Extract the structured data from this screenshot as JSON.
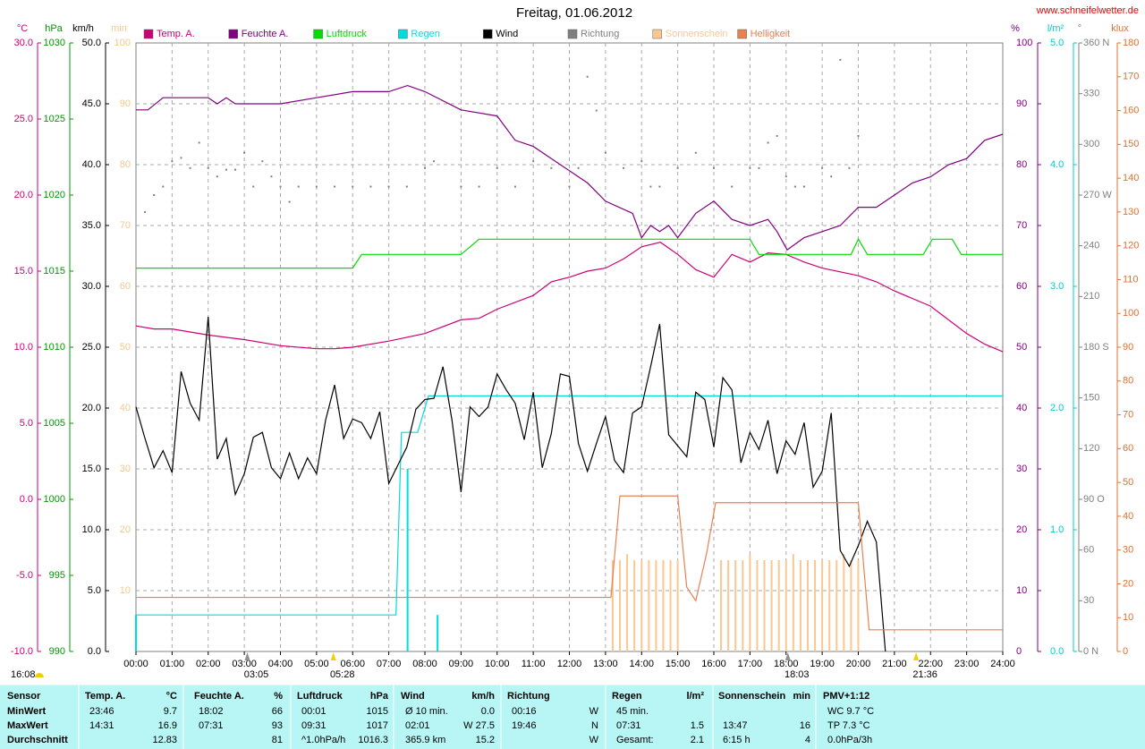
{
  "chart_data": {
    "type": "line",
    "title": "Freitag, 01.06.2012",
    "source": "www.schneifelwetter.de",
    "xlim": [
      0,
      24
    ],
    "xticks": [
      {
        "value": 0,
        "label": "00:00"
      },
      {
        "value": 1,
        "label": "01:00"
      },
      {
        "value": 2,
        "label": "02:00"
      },
      {
        "value": 3,
        "label": "03:00"
      },
      {
        "value": 4,
        "label": "04:00"
      },
      {
        "value": 5,
        "label": "05:00"
      },
      {
        "value": 6,
        "label": "06:00"
      },
      {
        "value": 7,
        "label": "07:00"
      },
      {
        "value": 8,
        "label": "08:00"
      },
      {
        "value": 9,
        "label": "09:00"
      },
      {
        "value": 10,
        "label": "10:00"
      },
      {
        "value": 11,
        "label": "11:00"
      },
      {
        "value": 12,
        "label": "12:00"
      },
      {
        "value": 13,
        "label": "13:00"
      },
      {
        "value": 14,
        "label": "14:00"
      },
      {
        "value": 15,
        "label": "15:00"
      },
      {
        "value": 16,
        "label": "16:00"
      },
      {
        "value": 17,
        "label": "17:00"
      },
      {
        "value": 18,
        "label": "18:00"
      },
      {
        "value": 19,
        "label": "19:00"
      },
      {
        "value": 20,
        "label": "20:00"
      },
      {
        "value": 21,
        "label": "21:00"
      },
      {
        "value": 22,
        "label": "22:00"
      },
      {
        "value": 23,
        "label": "23:00"
      },
      {
        "value": 24,
        "label": "24:00"
      }
    ],
    "xgrid": true,
    "axes": [
      {
        "label": "°C",
        "color": "#cc0077",
        "lim": [
          -10,
          30
        ],
        "ticks": [
          {
            "value": -10,
            "label": "-10.0"
          },
          {
            "value": -5,
            "label": "-5.0"
          },
          {
            "value": 0,
            "label": "0.0"
          },
          {
            "value": 5,
            "label": "5.0"
          },
          {
            "value": 10,
            "label": "10.0"
          },
          {
            "value": 15,
            "label": "15.0"
          },
          {
            "value": 20,
            "label": "20.0"
          },
          {
            "value": 25,
            "label": "25.0"
          },
          {
            "value": 30,
            "label": "30.0"
          }
        ]
      },
      {
        "label": "hPa",
        "color": "#009900",
        "lim": [
          990,
          1030
        ],
        "ticks": [
          990,
          995,
          1000,
          1005,
          1010,
          1015,
          1020,
          1025,
          1030
        ]
      },
      {
        "label": "km/h",
        "color": "#000000",
        "lim": [
          0,
          50
        ],
        "grid": true,
        "ticks": [
          {
            "value": 0,
            "label": "0.0"
          },
          {
            "value": 5,
            "label": "5.0"
          },
          {
            "value": 10,
            "label": "10.0"
          },
          {
            "value": 15,
            "label": "15.0"
          },
          {
            "value": 20,
            "label": "20.0"
          },
          {
            "value": 25,
            "label": "25.0"
          },
          {
            "value": 30,
            "label": "30.0"
          },
          {
            "value": 35,
            "label": "35.0"
          },
          {
            "value": 40,
            "label": "40.0"
          },
          {
            "value": 45,
            "label": "45.0"
          },
          {
            "value": 50,
            "label": "50.0"
          }
        ]
      },
      {
        "label": "min",
        "color": "#f0c890",
        "lim": [
          0,
          100
        ],
        "ticks": [
          10,
          20,
          30,
          40,
          50,
          60,
          70,
          80,
          90,
          100
        ]
      },
      {
        "label": "%",
        "color": "#800080",
        "lim": [
          0,
          100
        ],
        "ticks": [
          0,
          10,
          20,
          30,
          40,
          50,
          60,
          70,
          80,
          90,
          100
        ]
      },
      {
        "label": "l/m²",
        "color": "#00cccc",
        "lim": [
          0,
          5
        ],
        "ticks": [
          {
            "value": 0,
            "label": "0.0"
          },
          {
            "value": 1,
            "label": "1.0"
          },
          {
            "value": 2,
            "label": "2.0"
          },
          {
            "value": 3,
            "label": "3.0"
          },
          {
            "value": 4,
            "label": "4.0"
          },
          {
            "value": 5,
            "label": "5.0"
          }
        ]
      },
      {
        "label": "°",
        "color": "#808080",
        "lim": [
          0,
          360
        ],
        "ticks": [
          {
            "value": 0,
            "label": "0 N"
          },
          30,
          60,
          {
            "value": 90,
            "label": "90 O"
          },
          120,
          150,
          {
            "value": 180,
            "label": "180 S"
          },
          210,
          240,
          {
            "value": 270,
            "label": "270 W"
          },
          300,
          330,
          {
            "value": 360,
            "label": "360 N"
          }
        ]
      },
      {
        "label": "klux",
        "color": "#e07030",
        "lim": [
          0,
          180
        ],
        "ticks": [
          0,
          10,
          20,
          30,
          40,
          50,
          60,
          70,
          80,
          90,
          100,
          110,
          120,
          130,
          140,
          150,
          160,
          170,
          180
        ]
      }
    ],
    "series": [
      {
        "name": "Temp. A.",
        "color": "#cc0077",
        "axis": "°C",
        "mark": "line",
        "x": [
          0,
          0.5,
          1,
          2,
          3,
          4,
          5,
          5.5,
          6,
          7,
          8,
          9,
          9.5,
          10,
          11,
          11.5,
          12,
          12.5,
          13,
          13.5,
          14,
          14.52,
          15,
          15.5,
          16,
          16.5,
          17,
          17.5,
          18,
          18.5,
          19,
          20,
          20.5,
          21,
          22,
          23,
          23.5,
          24
        ],
        "values": [
          11.4,
          11.2,
          11.2,
          10.8,
          10.5,
          10.1,
          9.9,
          9.9,
          10.0,
          10.4,
          10.9,
          11.8,
          11.9,
          12.5,
          13.4,
          14.3,
          14.6,
          15.0,
          15.2,
          15.8,
          16.6,
          16.9,
          16.1,
          15.1,
          14.6,
          16.1,
          15.6,
          16.2,
          16.1,
          15.6,
          15.2,
          14.7,
          14.3,
          13.7,
          12.7,
          10.9,
          10.2,
          9.7
        ]
      },
      {
        "name": "Feuchte A.",
        "color": "#800080",
        "axis": "%",
        "mark": "line",
        "x": [
          0,
          0.33,
          0.75,
          1,
          2,
          2.25,
          2.5,
          2.75,
          4,
          5,
          6,
          7,
          7.52,
          8,
          9,
          10,
          10.5,
          11,
          11.5,
          12,
          12.5,
          13,
          13.75,
          14,
          14.25,
          14.5,
          14.75,
          15,
          15.5,
          16,
          16.5,
          17,
          17.5,
          17.75,
          18.03,
          18.5,
          19,
          19.5,
          20,
          20.5,
          21,
          21.5,
          22,
          22.5,
          23,
          23.5,
          24
        ],
        "values": [
          89,
          89,
          91,
          91,
          91,
          90,
          91,
          90,
          90,
          91,
          92,
          92,
          93,
          92,
          89,
          88,
          84,
          83,
          81,
          79,
          77,
          74,
          72,
          68,
          70,
          69,
          70,
          68,
          72,
          74,
          71,
          70,
          71,
          69,
          66,
          68,
          69,
          70,
          73,
          73,
          75,
          77,
          78,
          80,
          81,
          84,
          85
        ]
      },
      {
        "name": "Luftdruck",
        "color": "#00dd00",
        "axis": "hPa",
        "mark": "line",
        "x": [
          0,
          6,
          6.25,
          9,
          9.5,
          17,
          17.25,
          19.8,
          20,
          20.25,
          21.8,
          22.05,
          22.6,
          22.85,
          24
        ],
        "values": [
          1015.2,
          1015.2,
          1016.1,
          1016.1,
          1017.1,
          1017.1,
          1016.1,
          1016.1,
          1017.1,
          1016.1,
          1016.1,
          1017.1,
          1017.1,
          1016.1,
          1016.1
        ]
      },
      {
        "name": "Regen",
        "color": "#00dddd",
        "axis": "l/m²",
        "mark": "line",
        "x": [
          0,
          0,
          7.2,
          7.35,
          7.8,
          8.1,
          24
        ],
        "values": [
          0,
          0.3,
          0.3,
          1.8,
          1.8,
          2.1,
          2.1
        ]
      },
      {
        "name": "Wind",
        "color": "#000000",
        "axis": "km/h",
        "mark": "line",
        "x": [
          0,
          0.25,
          0.5,
          0.75,
          1,
          1.25,
          1.5,
          1.75,
          2,
          2.25,
          2.5,
          2.75,
          3,
          3.25,
          3.5,
          3.75,
          4,
          4.25,
          4.5,
          4.75,
          5,
          5.25,
          5.5,
          5.75,
          6,
          6.25,
          6.5,
          6.75,
          7,
          7.25,
          7.5,
          7.75,
          8,
          8.25,
          8.5,
          8.75,
          9,
          9.25,
          9.5,
          9.75,
          10,
          10.25,
          10.5,
          10.75,
          11,
          11.25,
          11.5,
          11.75,
          12,
          12.25,
          12.5,
          12.75,
          13,
          13.25,
          13.5,
          13.75,
          14,
          14.25,
          14.5,
          14.75,
          15,
          15.25,
          15.5,
          15.75,
          16,
          16.25,
          16.5,
          16.75,
          17,
          17.25,
          17.5,
          17.75,
          18,
          18.25,
          18.5,
          18.75,
          19,
          19.25,
          19.5,
          19.75,
          20,
          20.25,
          20.5,
          20.75
        ],
        "values": [
          20.1,
          17.5,
          15.1,
          16.5,
          14.7,
          23.0,
          20.4,
          19.0,
          27.5,
          15.8,
          17.5,
          12.9,
          14.6,
          17.6,
          18.0,
          15.1,
          14.2,
          16.3,
          14.2,
          15.9,
          14.6,
          19.0,
          21.9,
          17.5,
          19.1,
          18.8,
          17.5,
          19.7,
          13.8,
          15.3,
          16.8,
          19.9,
          20.7,
          20.8,
          23.4,
          19.0,
          13.1,
          20.1,
          19.3,
          20.1,
          22.8,
          21.5,
          20.4,
          17.4,
          21.3,
          15.1,
          17.9,
          22.8,
          22.6,
          17.1,
          14.8,
          17.1,
          19.3,
          15.7,
          14.7,
          19.6,
          20.1,
          23.4,
          26.9,
          17.8,
          16.9,
          16.0,
          21.3,
          20.7,
          16.8,
          22.5,
          21.5,
          15.5,
          18.0,
          16.6,
          19.0,
          14.6,
          17.3,
          16.2,
          18.8,
          13.5,
          14.8,
          19.6,
          8.3,
          7.0,
          8.7,
          10.7,
          9.0,
          0.0
        ]
      },
      {
        "name": "Richtung",
        "color": "#808080",
        "axis": "°",
        "mark": "dots",
        "x": [
          0.25,
          0.5,
          0.75,
          1,
          1.25,
          1.5,
          1.75,
          2,
          2.25,
          2.5,
          2.75,
          3,
          3.25,
          3.5,
          3.75,
          4,
          4.25,
          4.5,
          5,
          5.5,
          6,
          6.5,
          7,
          7.5,
          8,
          8.25,
          9,
          9.5,
          10,
          10.5,
          11,
          11.5,
          12,
          12.25,
          12.5,
          12.75,
          13,
          13.5,
          14,
          14.25,
          14.5,
          15,
          15.5,
          16,
          16.5,
          17,
          17.25,
          17.5,
          17.75,
          18,
          18.25,
          18.5,
          19,
          19.25,
          19.5,
          19.75,
          20
        ],
        "values": [
          260,
          270,
          275,
          290,
          292,
          286,
          301,
          286,
          281,
          285,
          285,
          295,
          275,
          290,
          281,
          275,
          266,
          275,
          275,
          275,
          275,
          275,
          275,
          275,
          286,
          290,
          275,
          275,
          286,
          275,
          290,
          286,
          275,
          286,
          340,
          320,
          295,
          286,
          290,
          275,
          275,
          286,
          295,
          286,
          275,
          286,
          286,
          301,
          305,
          281,
          275,
          275,
          286,
          281,
          350,
          286,
          305
        ]
      },
      {
        "name": "Sonnenschein",
        "color": "#f8c890",
        "axis": "min",
        "mark": "bars",
        "x": [
          13.2,
          13.4,
          13.6,
          13.8,
          14.0,
          14.2,
          14.4,
          14.6,
          14.8,
          15.0,
          16.2,
          16.4,
          16.6,
          16.8,
          17.0,
          17.2,
          17.4,
          17.6,
          17.8,
          18.0,
          18.2,
          18.4,
          18.6,
          18.8,
          19.0,
          19.2,
          19.4,
          19.6,
          19.8,
          20.0
        ],
        "values": [
          15,
          15,
          16,
          15,
          15,
          15,
          15,
          15,
          15,
          15,
          15,
          15,
          15,
          15,
          16,
          15,
          15,
          15,
          15,
          15,
          16,
          15,
          15,
          15,
          15,
          15,
          15,
          16,
          15,
          15
        ]
      },
      {
        "name": "Helligkeit",
        "color": "#e88050",
        "axis": "klux",
        "mark": "line",
        "x": [
          0,
          13.15,
          13.4,
          15.0,
          15.25,
          15.5,
          15.8,
          16.05,
          20.0,
          20.3,
          24
        ],
        "values": [
          16,
          16,
          46,
          46,
          19,
          15,
          29,
          44,
          44,
          6.4,
          6.4
        ]
      },
      {
        "color": "#00dddd",
        "axis": "l/m²",
        "mark": "bars",
        "x": [
          0,
          7.52,
          8.35
        ],
        "values": [
          0.3,
          1.5,
          0.3
        ]
      }
    ],
    "sun_markers": [
      {
        "x": 3.0833,
        "label": "03:05",
        "color": "#909090"
      },
      {
        "x": 5.4667,
        "label": "05:28",
        "color": "#f0d000"
      },
      {
        "x": 18.05,
        "label": "18:03",
        "color": "#909090"
      },
      {
        "x": 21.6,
        "label": "21:36",
        "color": "#f0d000"
      }
    ],
    "left_label": "16:08"
  },
  "table": {
    "row_labels": [
      "Sensor",
      "MinWert",
      "MaxWert",
      "Durchschnitt"
    ],
    "columns": [
      {
        "title": "Temp. A.",
        "unit": "°C",
        "cells": [
          [
            "23:46",
            "9.7"
          ],
          [
            "14:31",
            "16.9"
          ],
          [
            null,
            "12.83"
          ]
        ]
      },
      {
        "title": "Feuchte A.",
        "unit": "%",
        "cells": [
          [
            "18:02",
            "66"
          ],
          [
            "07:31",
            "93"
          ],
          [
            null,
            "81"
          ]
        ]
      },
      {
        "title": "Luftdruck",
        "unit": "hPa",
        "cells": [
          [
            "00:01",
            "1015"
          ],
          [
            "09:31",
            "1017"
          ],
          [
            "^1.0hPa/h",
            "1016.3"
          ]
        ]
      },
      {
        "title": "Wind",
        "unit": "km/h",
        "cells": [
          [
            "Ø 10 min.",
            "0.0"
          ],
          [
            "02:01",
            "W 27.5"
          ],
          [
            "365.9 km",
            "15.2"
          ]
        ]
      },
      {
        "title": "Richtung",
        "cells": [
          [
            "00:16",
            "W"
          ],
          [
            "19:46",
            "N"
          ],
          [
            null,
            "W"
          ]
        ]
      },
      {
        "title": "Regen",
        "unit": "l/m²",
        "cells": [
          [
            "45 min.",
            null
          ],
          [
            "07:31",
            "1.5"
          ],
          [
            "Gesamt:",
            "2.1"
          ]
        ]
      },
      {
        "title": "Sonnenschein",
        "unit": "min",
        "cells": [
          [
            null,
            null
          ],
          [
            "13:47",
            "16"
          ],
          [
            "6:15 h",
            "4"
          ]
        ]
      },
      {
        "title": "PMV+1:12",
        "cells": [
          [
            "WC 9.7 °C",
            null
          ],
          [
            "TP 7.3 °C",
            null
          ],
          [
            "0.0hPa/3h",
            null
          ]
        ]
      }
    ]
  }
}
